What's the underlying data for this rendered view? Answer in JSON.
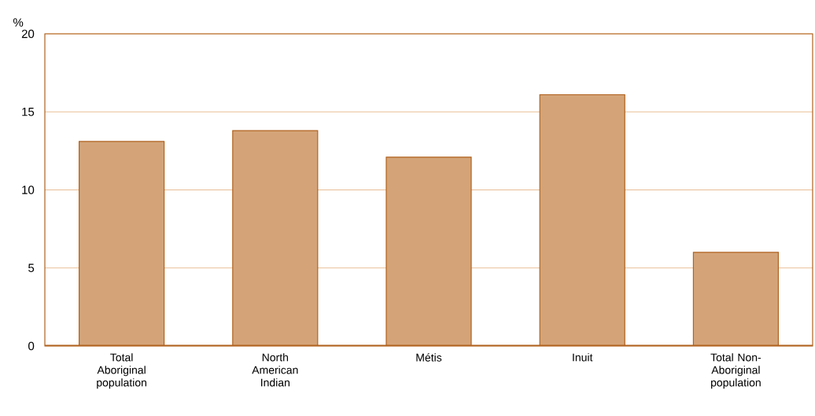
{
  "chart_data": {
    "type": "bar",
    "ylabel": "%",
    "categories": [
      "Total Aboriginal population",
      "North American Indian",
      "Métis",
      "Inuit",
      "Total Non-Aboriginal population"
    ],
    "values": [
      13.1,
      13.8,
      12.1,
      16.1,
      6.0
    ],
    "color": "#d4a478",
    "ylim": [
      0,
      20
    ],
    "yticks": [
      0,
      5,
      10,
      15,
      20
    ],
    "grid": "y"
  }
}
